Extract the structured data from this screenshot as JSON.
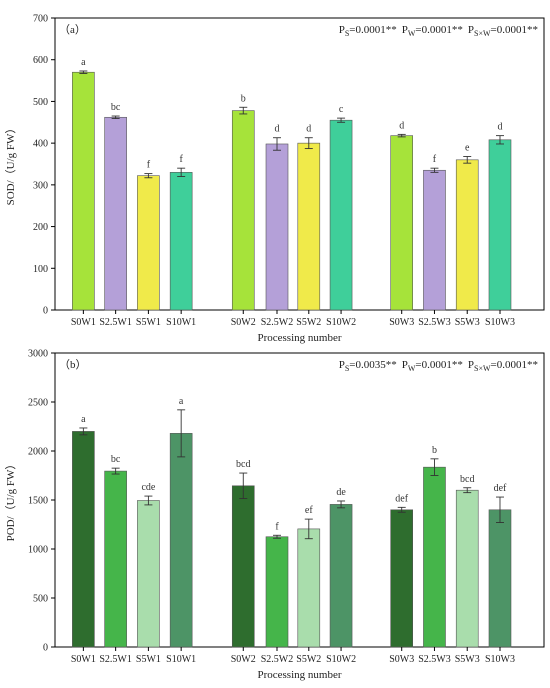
{
  "chart_data": [
    {
      "type": "bar",
      "panel_label": "（a）",
      "stats": [
        {
          "main": "P",
          "sub": "S",
          "value": "=0.0001**"
        },
        {
          "main": "P",
          "sub": "W",
          "value": "=0.0001**"
        },
        {
          "main": "P",
          "sub": "S×W",
          "value": "=0.0001**"
        }
      ],
      "ylabel": "SOD/（U/g FW）",
      "xlabel": "Processing number",
      "ylim": [
        0,
        700
      ],
      "yticks": [
        0,
        100,
        200,
        300,
        400,
        500,
        600,
        700
      ],
      "categories": [
        "S0W1",
        "S2.5W1",
        "S5W1",
        "S10W1",
        "S0W2",
        "S2.5W2",
        "S5W2",
        "S10W2",
        "S0W3",
        "S2.5W3",
        "S5W3",
        "S10W3"
      ],
      "values": [
        570,
        462,
        322,
        330,
        478,
        398,
        400,
        455,
        418,
        335,
        360,
        408
      ],
      "errors": [
        3,
        3,
        5,
        10,
        8,
        15,
        13,
        5,
        3,
        5,
        8,
        10
      ],
      "sig": [
        "a",
        "bc",
        "f",
        "f",
        "b",
        "d",
        "d",
        "c",
        "d",
        "f",
        "e",
        "d"
      ],
      "colors": [
        "#a6e33a",
        "#b4a0d8",
        "#f0ea4a",
        "#3fcf9a"
      ],
      "grid": false
    },
    {
      "type": "bar",
      "panel_label": "（b）",
      "stats": [
        {
          "main": "P",
          "sub": "S",
          "value": "=0.0035**"
        },
        {
          "main": "P",
          "sub": "W",
          "value": "=0.0001**"
        },
        {
          "main": "P",
          "sub": "S×W",
          "value": "=0.0001**"
        }
      ],
      "ylabel": "POD/（U/g FW）",
      "xlabel": "Processing number",
      "ylim": [
        0,
        3000
      ],
      "yticks": [
        0,
        500,
        1000,
        1500,
        2000,
        2500,
        3000
      ],
      "categories": [
        "S0W1",
        "S2.5W1",
        "S5W1",
        "S10W1",
        "S0W2",
        "S2.5W2",
        "S5W2",
        "S10W2",
        "S0W3",
        "S2.5W3",
        "S5W3",
        "S10W3"
      ],
      "values": [
        2200,
        1795,
        1495,
        2180,
        1645,
        1125,
        1205,
        1455,
        1400,
        1835,
        1600,
        1400
      ],
      "errors": [
        35,
        30,
        45,
        240,
        130,
        15,
        100,
        35,
        25,
        85,
        25,
        130
      ],
      "sig": [
        "a",
        "bc",
        "cde",
        "a",
        "bcd",
        "f",
        "ef",
        "de",
        "def",
        "b",
        "bcd",
        "def"
      ],
      "colors": [
        "#2e6d2e",
        "#45b54a",
        "#a9ddac",
        "#4d9466"
      ],
      "grid": false
    }
  ]
}
